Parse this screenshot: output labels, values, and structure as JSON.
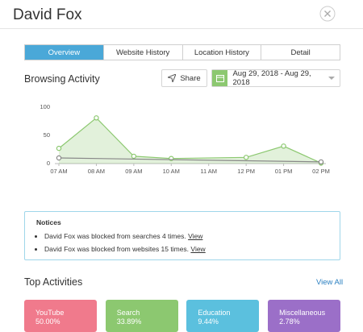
{
  "header": {
    "title": "David Fox"
  },
  "tabs": {
    "items": [
      "Overview",
      "Website History",
      "Location History",
      "Detail"
    ],
    "active": 0
  },
  "browsing": {
    "title": "Browsing Activity",
    "share": "Share",
    "date_range": "Aug 29, 2018 - Aug 29, 2018"
  },
  "chart_data": {
    "type": "line",
    "xlim": [
      7,
      14
    ],
    "xticks": [
      {
        "value": 7,
        "label": "07 AM"
      },
      {
        "value": 8,
        "label": "08 AM"
      },
      {
        "value": 9,
        "label": "09 AM"
      },
      {
        "value": 10,
        "label": "10 AM"
      },
      {
        "value": 11,
        "label": "11 AM"
      },
      {
        "value": 12,
        "label": "12 PM"
      },
      {
        "value": 13,
        "label": "01 PM"
      },
      {
        "value": 14,
        "label": "02 PM"
      }
    ],
    "ylim": [
      0,
      100
    ],
    "yticks": [
      0,
      50,
      100
    ],
    "series": [
      {
        "color": "#8cc870",
        "fill": true,
        "x": [
          7,
          8,
          9,
          10,
          12,
          13,
          14
        ],
        "values": [
          27,
          81,
          13,
          9,
          11,
          31,
          1
        ]
      },
      {
        "color": "#888888",
        "fill": false,
        "x": [
          7,
          14
        ],
        "values": [
          10,
          3
        ]
      }
    ]
  },
  "notices": {
    "title": "Notices",
    "items": [
      {
        "text": "David Fox was blocked from searches 4 times.",
        "link": "View"
      },
      {
        "text": "David Fox was blocked from websites 15 times.",
        "link": "View"
      }
    ]
  },
  "top_activities": {
    "title": "Top Activities",
    "view_all": "View All",
    "cards": [
      {
        "label": "YouTube",
        "value": "50.00%",
        "color": "#f07a8c"
      },
      {
        "label": "Search",
        "value": "33.89%",
        "color": "#8cc870"
      },
      {
        "label": "Education",
        "value": "9.44%",
        "color": "#5bc0de"
      },
      {
        "label": "Miscellaneous",
        "value": "2.78%",
        "color": "#9b6fc8"
      }
    ]
  }
}
